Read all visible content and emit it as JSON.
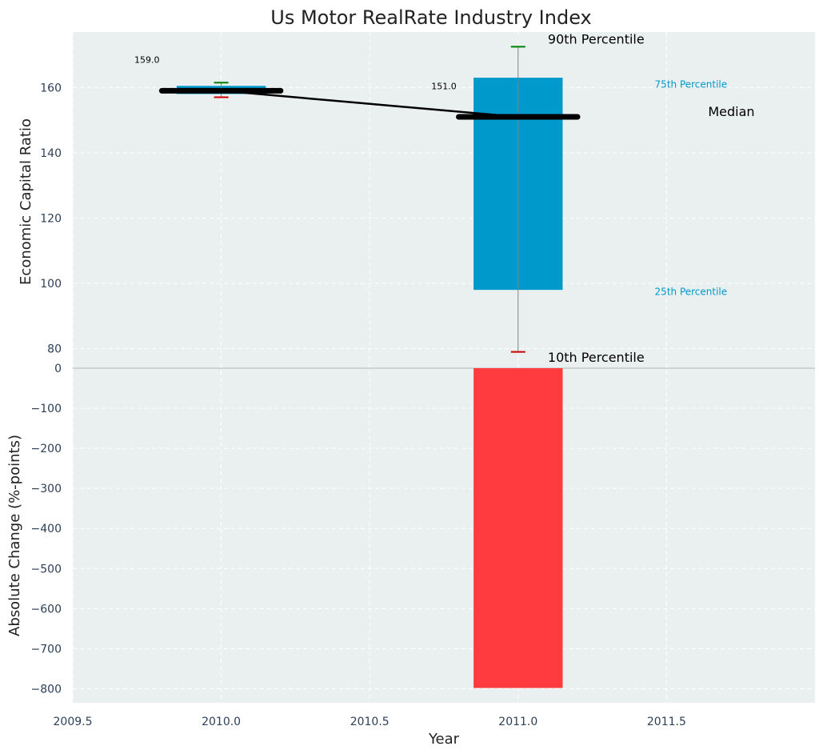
{
  "chart_data": {
    "title": "Us Motor RealRate Industry Index",
    "xlabel": "Year",
    "colors": {
      "panel_bg": "#EAEFEF",
      "grid": "#FFFFFF",
      "box": "#0099CC",
      "negative_bar": "#FF3B3F",
      "median": "#000000",
      "whisker_top": "#008000",
      "whisker_bottom": "#CC0000",
      "tick_text": "#2E4057",
      "label_text": "#222222",
      "percentile_text": "#0099CC"
    },
    "x": {
      "range": [
        2009.5,
        2012.0
      ],
      "ticks": [
        2009.5,
        2010.0,
        2010.5,
        2011.0,
        2011.5
      ],
      "tick_labels": [
        "2009.5",
        "2010.0",
        "2010.5",
        "2011.0",
        "2011.5"
      ]
    },
    "top_panel": {
      "type": "box",
      "ylabel": "Economic Capital Ratio",
      "yrange": [
        74,
        177
      ],
      "yticks": [
        80,
        100,
        120,
        140,
        160
      ],
      "boxes": [
        {
          "year": 2010,
          "p10": 157,
          "p25": 158,
          "median": 159,
          "p75": 160.5,
          "p90": 161.5,
          "median_label": "159.0"
        },
        {
          "year": 2011,
          "p10": 79,
          "p25": 98,
          "median": 151,
          "p75": 163,
          "p90": 172.5,
          "median_label": "151.0"
        }
      ],
      "median_line": {
        "x": [
          2010,
          2011
        ],
        "y": [
          159,
          151
        ]
      },
      "annotations": {
        "p90": "90th Percentile",
        "p75": "75th Percentile",
        "median": "Median",
        "p25": "25th Percentile",
        "p10": "10th Percentile"
      }
    },
    "bottom_panel": {
      "type": "bar",
      "ylabel": "Absolute Change (%-points)",
      "yrange": [
        -835,
        0
      ],
      "yticks": [
        0,
        -100,
        -200,
        -300,
        -400,
        -500,
        -600,
        -700,
        -800
      ],
      "bars": [
        {
          "year": 2010,
          "value": 0
        },
        {
          "year": 2011,
          "value": -798
        }
      ]
    }
  }
}
